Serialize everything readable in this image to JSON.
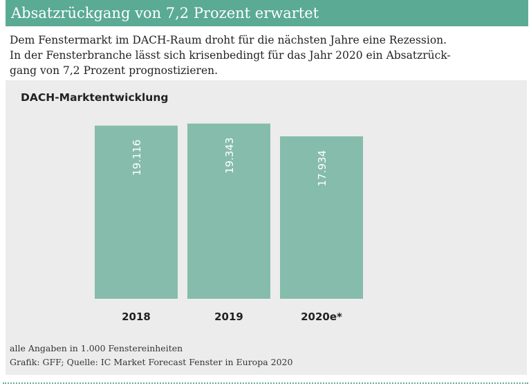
{
  "header": {
    "title": "Absatzrückgang von 7,2 Prozent erwartet"
  },
  "intro": {
    "lines": [
      "Dem Fenstermarkt im DACH-Raum droht für die nächsten Jahre eine Rezession.",
      "In der Fensterbranche lässt sich krisenbedingt für das Jahr 2020 ein Absatzrück-",
      "gang von 7,2 Prozent prognostizieren."
    ]
  },
  "chart_data": {
    "type": "bar",
    "title": "DACH-Marktentwicklung",
    "categories": [
      "2018",
      "2019",
      "2020e*"
    ],
    "values": [
      19116,
      19343,
      17934
    ],
    "value_labels": [
      "19.116",
      "19.343",
      "17.934"
    ],
    "xlabel": "",
    "ylabel": "",
    "ylim": [
      0,
      19700
    ],
    "grid": false,
    "legend": "none",
    "bar_color": "#86bcab",
    "label_color": "#ffffff"
  },
  "notes": {
    "unit": "alle Angaben in 1.000 Fenstereinheiten",
    "source": "Grafik: GFF; Quelle: IC Market Forecast Fenster in Europa 2020"
  },
  "colors": {
    "accent": "#5aaa94",
    "panel_bg": "#ececec",
    "bar": "#86bcab"
  }
}
